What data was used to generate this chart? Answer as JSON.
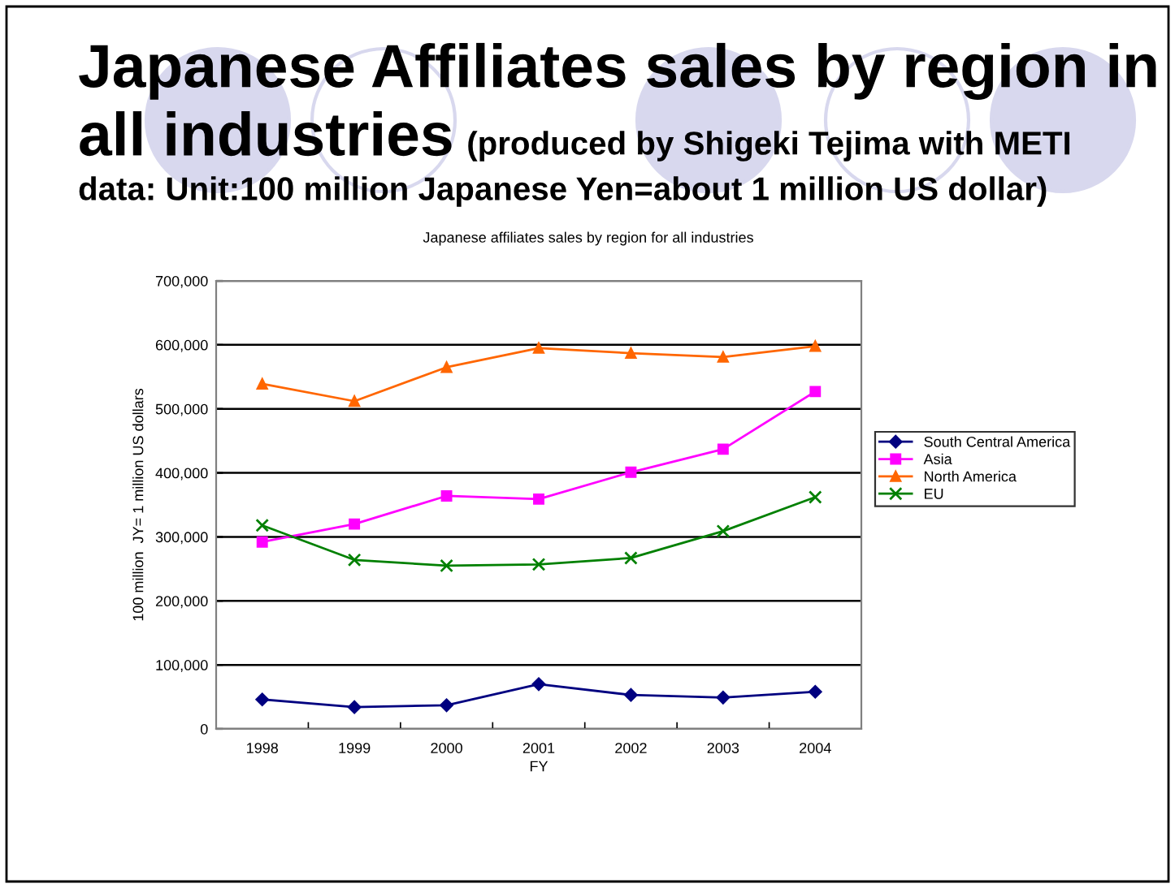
{
  "chart_data": {
    "type": "line",
    "title": "Japanese Affiliates sales by region in\nall industries",
    "subtitle": "(produced by Shigeki Tejima with METI\ndata: Unit:100 million Japanese Yen=about 1 million US dollar)",
    "annotations": [
      "Japanese affiliates sales by region for all industries"
    ],
    "xlabel": "FY",
    "ylabel": "100 million  JY= 1 million US dollars",
    "categories": [
      "1998",
      "1999",
      "2000",
      "2001",
      "2002",
      "2003",
      "2004"
    ],
    "series": [
      {
        "name": "South Central America",
        "color": "#000080",
        "marker": "diamond",
        "values": [
          46000,
          34000,
          37000,
          70000,
          53000,
          49000,
          58000
        ]
      },
      {
        "name": "Asia",
        "color": "#ff00ff",
        "marker": "square",
        "values": [
          292000,
          320000,
          364000,
          359000,
          401000,
          437000,
          527000
        ]
      },
      {
        "name": "North America",
        "color": "#ff6600",
        "marker": "triangle",
        "values": [
          539000,
          512000,
          565000,
          595000,
          587000,
          581000,
          598000
        ]
      },
      {
        "name": "EU",
        "color": "#008000",
        "marker": "cross",
        "values": [
          318000,
          264000,
          255000,
          257000,
          267000,
          309000,
          362000
        ]
      }
    ],
    "ylim": [
      0,
      700000
    ],
    "yticks": [
      0,
      {
        "value": 100000,
        "label": "100,000"
      },
      {
        "value": 200000,
        "label": "200,000"
      },
      {
        "value": 300000,
        "label": "300,000"
      },
      {
        "value": 400000,
        "label": "400,000"
      },
      {
        "value": 500000,
        "label": "500,000"
      },
      {
        "value": 600000,
        "label": "600,000"
      },
      {
        "value": 700000,
        "label": "700,000"
      }
    ],
    "grid": "y",
    "legend": "right",
    "line_style": "solid"
  }
}
